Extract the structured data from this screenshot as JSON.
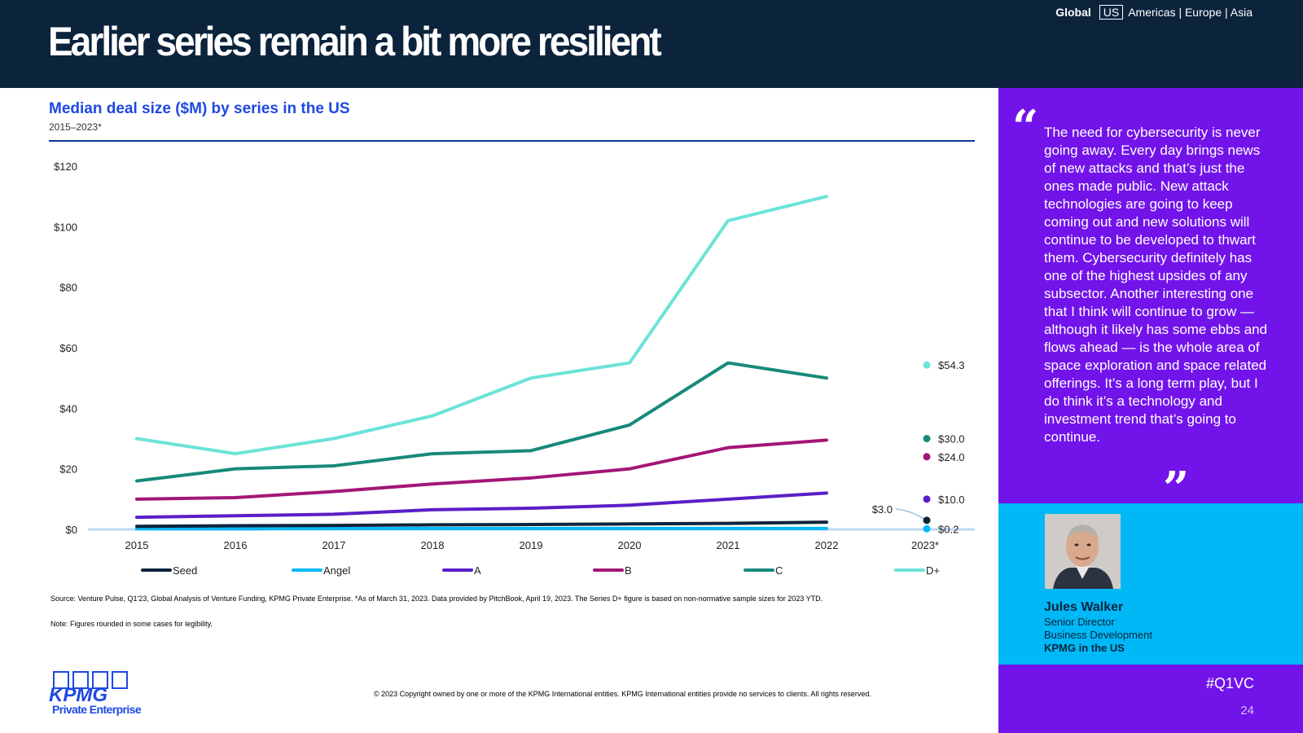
{
  "header": {
    "title": "Earlier series remain a bit more resilient",
    "nav": {
      "global": "Global",
      "current": "US",
      "others": "Americas | Europe | Asia"
    }
  },
  "chart_heading": "Median deal size ($M) by series in the US",
  "chart_subheading": "2015–2023*",
  "chart_data": {
    "type": "line",
    "title": "Median deal size ($M) by series in the US",
    "subtitle": "2015–2023*",
    "xlabel": "",
    "ylabel": "",
    "x": [
      "2015",
      "2016",
      "2017",
      "2018",
      "2019",
      "2020",
      "2021",
      "2022",
      "2023*"
    ],
    "ylim": [
      0,
      120
    ],
    "y_ticks": [
      "$0",
      "$20",
      "$40",
      "$60",
      "$80",
      "$100",
      "$120"
    ],
    "y_tick_values": [
      0,
      20,
      40,
      60,
      80,
      100,
      120
    ],
    "grid": false,
    "legend_position": "bottom",
    "series": [
      {
        "name": "Seed",
        "color": "#0c233c",
        "values": [
          1.0,
          1.2,
          1.3,
          1.5,
          1.6,
          1.8,
          2.0,
          2.4,
          3.0
        ]
      },
      {
        "name": "Angel",
        "color": "#00b8f5",
        "values": [
          0.2,
          0.2,
          0.3,
          0.3,
          0.3,
          0.3,
          0.3,
          0.3,
          0.2
        ]
      },
      {
        "name": "A",
        "color": "#5a1ec8",
        "values": [
          4.0,
          4.5,
          5.0,
          6.5,
          7.0,
          8.0,
          10.0,
          12.0,
          10.0
        ]
      },
      {
        "name": "B",
        "color": "#a31677",
        "values": [
          10.0,
          10.5,
          12.5,
          15.0,
          17.0,
          20.0,
          27.0,
          29.5,
          24.0
        ]
      },
      {
        "name": "C",
        "color": "#178a7a",
        "values": [
          16.0,
          20.0,
          21.0,
          25.0,
          26.0,
          34.5,
          55.0,
          50.0,
          30.0
        ]
      },
      {
        "name": "D+",
        "color": "#6ce3d8",
        "values": [
          30.0,
          25.0,
          30.0,
          37.5,
          50.0,
          55.0,
          102.0,
          110.0,
          54.3
        ]
      }
    ],
    "data_labels_2023": [
      {
        "series": "D+",
        "label": "$54.3"
      },
      {
        "series": "C",
        "label": "$30.0"
      },
      {
        "series": "B",
        "label": "$24.0"
      },
      {
        "series": "A",
        "label": "$10.0"
      },
      {
        "series": "Seed",
        "label": "$3.0"
      },
      {
        "series": "Angel",
        "label": "$0.2"
      }
    ]
  },
  "source_note": "Source: Venture Pulse, Q1'23, Global Analysis of Venture Funding, KPMG Private Enterprise. *As of March 31, 2023. Data provided by PitchBook, April 19, 2023. The Series D+ figure is based on non-normative sample sizes for 2023 YTD.",
  "rounding_note": "Note: Figures rounded in some cases for legibility.",
  "copyright": "© 2023 Copyright owned by one or more of the KPMG International entities. KPMG International entities provide no services to clients. All rights reserved.",
  "logo": {
    "wordmark": "KPMG",
    "sub": "Private Enterprise"
  },
  "quote": {
    "open_mark": "“",
    "close_mark": "”",
    "text": "The need for cybersecurity is never going away. Every day brings news of new attacks and that’s just the ones made public. New attack technologies are going to keep coming out and new solutions will continue to be developed to thwart them. Cybersecurity definitely has one of the highest upsides of any subsector. Another interesting one that I think will continue to grow — although it likely has some ebbs and flows ahead — is the whole area of space exploration and space related offerings. It’s a long term play, but I do think it’s a technology and investment trend that’s going to continue."
  },
  "person": {
    "name": "Jules Walker",
    "role_line1": "Senior Director",
    "role_line2": "Business Development",
    "org": "KPMG in the US"
  },
  "hashtag": "#Q1VC",
  "page_number": "24",
  "colors": {
    "navy": "#0c233c",
    "purple": "#7213ea",
    "cyan": "#00b8f5",
    "kpmg_blue": "#1e49e2"
  }
}
